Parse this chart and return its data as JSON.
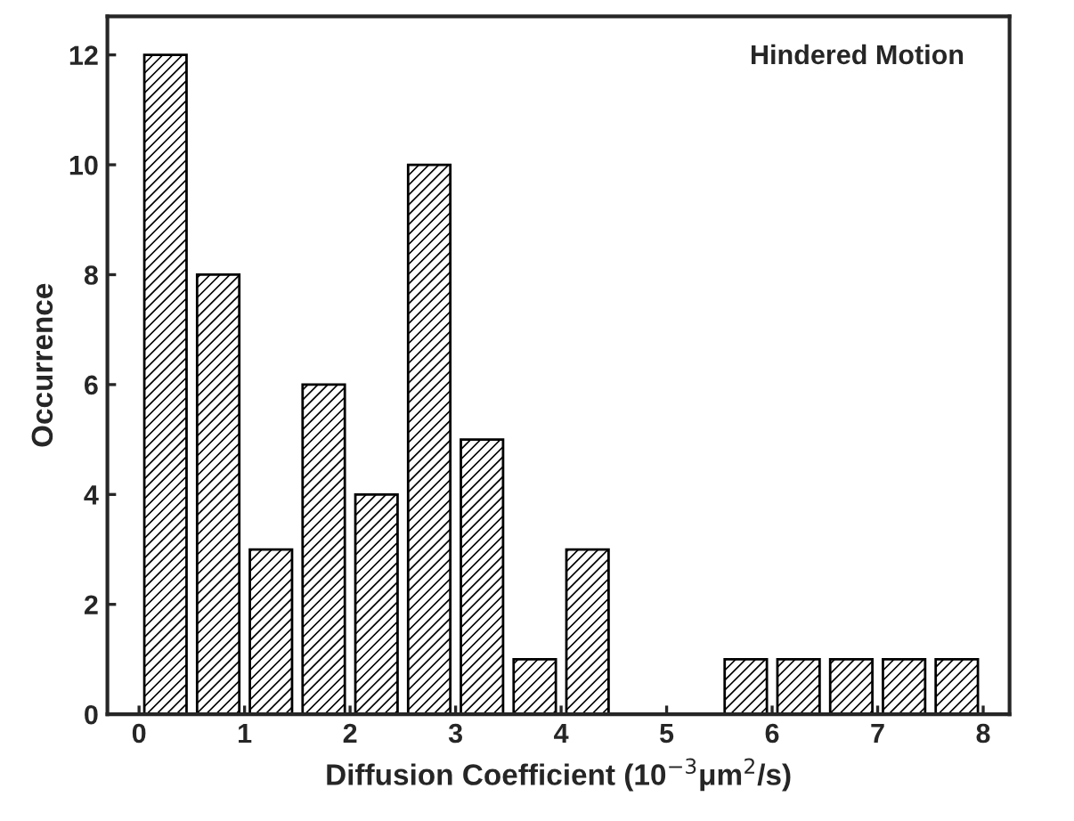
{
  "chart_data": {
    "type": "bar",
    "xlabel": "Diffusion Coefficient (10$^{−3}$μm$^{2}$/s)",
    "ylabel": "Occurrence",
    "annotations": [
      "Hindered Motion"
    ],
    "x": [
      0.25,
      0.75,
      1.25,
      1.75,
      2.25,
      2.75,
      3.25,
      3.75,
      4.25,
      4.75,
      5.25,
      5.75,
      6.25,
      6.75,
      7.25,
      7.75
    ],
    "values": [
      12,
      8,
      3,
      6,
      4,
      10,
      5,
      1,
      3,
      0,
      0,
      1,
      1,
      1,
      1,
      1
    ],
    "color": "#000000",
    "xlim": [
      -0.3,
      8.25
    ],
    "ylim": [
      0,
      12.7
    ],
    "xticks": [
      0,
      1,
      2,
      3,
      4,
      5,
      6,
      7,
      8
    ],
    "yticks": [
      0,
      2,
      4,
      6,
      8,
      10,
      12
    ],
    "grid": false,
    "legend": false
  }
}
